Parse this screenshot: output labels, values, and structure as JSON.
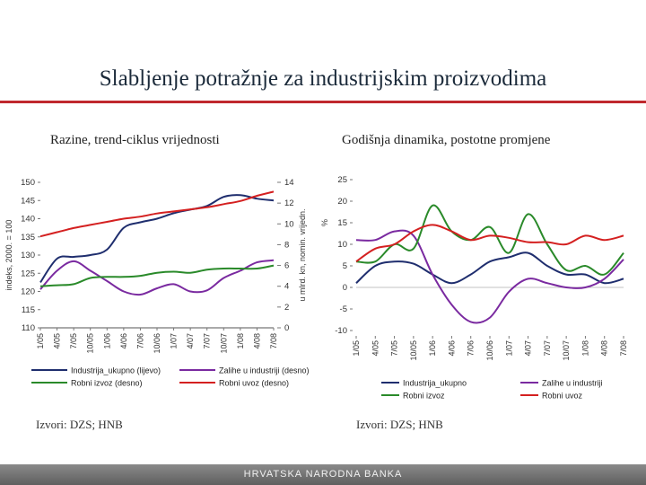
{
  "page": {
    "title": "Slabljenje potražnje za industrijskim proizvodima",
    "footer_text": "HRVATSKA NARODNA BANKA",
    "accent_color": "#c0282e"
  },
  "left_panel": {
    "subtitle": "Razine, trend-ciklus vrijednosti",
    "source": "Izvori: DZS; HNB"
  },
  "right_panel": {
    "subtitle": "Godišnja dinamika, postotne promjene",
    "source": "Izvori: DZS; HNB"
  },
  "chart_data": [
    {
      "type": "line",
      "title": "Razine, trend-ciklus vrijednosti",
      "ylabel": "indeks, 2000. = 100",
      "y2label": "u mlrd. kn, nomin. vrijedn.",
      "ylim": [
        110,
        150
      ],
      "yticks": [
        110,
        115,
        120,
        125,
        130,
        135,
        140,
        145,
        150
      ],
      "y2lim": [
        0,
        14
      ],
      "y2ticks": [
        0,
        2,
        4,
        6,
        8,
        10,
        12,
        14
      ],
      "x": [
        "1/05",
        "4/05",
        "7/05",
        "10/05",
        "1/06",
        "4/06",
        "7/06",
        "10/06",
        "1/07",
        "4/07",
        "7/07",
        "10/07",
        "1/08",
        "4/08",
        "7/08"
      ],
      "series": [
        {
          "name": "Industrija_ukupno (lijevo)",
          "axis": "left",
          "color": "#1f2e6e",
          "values": [
            122.5,
            129.0,
            129.5,
            130.0,
            131.5,
            137.5,
            139.0,
            140.0,
            141.5,
            142.5,
            143.5,
            146.0,
            146.5,
            145.5,
            145.0
          ]
        },
        {
          "name": "Zalihe u industriji (desno)",
          "axis": "right",
          "color": "#7a2aa0",
          "values": [
            3.7,
            5.5,
            6.4,
            5.5,
            4.5,
            3.5,
            3.2,
            3.8,
            4.2,
            3.5,
            3.6,
            4.8,
            5.5,
            6.3,
            6.5
          ]
        },
        {
          "name": "Robni izvoz (desno)",
          "axis": "right",
          "color": "#2a8a2a",
          "values": [
            4.0,
            4.1,
            4.2,
            4.8,
            4.9,
            4.9,
            5.0,
            5.3,
            5.4,
            5.3,
            5.6,
            5.7,
            5.7,
            5.7,
            6.0
          ]
        },
        {
          "name": "Robni uvoz (desno)",
          "axis": "right",
          "color": "#d42020",
          "values": [
            8.8,
            9.2,
            9.6,
            9.9,
            10.2,
            10.5,
            10.7,
            11.0,
            11.2,
            11.4,
            11.6,
            11.9,
            12.2,
            12.7,
            13.1
          ]
        }
      ]
    },
    {
      "type": "line",
      "title": "Godišnja dinamika, postotne promjene",
      "ylabel": "%",
      "ylim": [
        -10,
        25
      ],
      "yticks": [
        -10,
        -5,
        0,
        5,
        10,
        15,
        20,
        25
      ],
      "x": [
        "1/05",
        "4/05",
        "7/05",
        "10/05",
        "1/06",
        "4/06",
        "7/06",
        "10/06",
        "1/07",
        "4/07",
        "7/07",
        "10/07",
        "1/08",
        "4/08",
        "7/08"
      ],
      "series": [
        {
          "name": "Industrija_ukupno",
          "color": "#1f2e6e",
          "values": [
            1.0,
            5.0,
            6.0,
            5.5,
            3.0,
            1.0,
            3.0,
            6.0,
            7.0,
            8.0,
            5.0,
            3.0,
            3.0,
            1.0,
            2.0
          ]
        },
        {
          "name": "Zalihe u industriji",
          "color": "#7a2aa0",
          "values": [
            11.0,
            11.0,
            13.0,
            12.0,
            3.0,
            -4.0,
            -8.0,
            -7.0,
            -1.0,
            2.0,
            1.0,
            0.0,
            0.0,
            2.0,
            6.5
          ]
        },
        {
          "name": "Robni izvoz",
          "color": "#2a8a2a",
          "values": [
            6.0,
            6.0,
            10.0,
            9.0,
            19.0,
            13.0,
            11.0,
            14.0,
            8.0,
            17.0,
            10.0,
            4.0,
            5.0,
            3.0,
            8.0
          ]
        },
        {
          "name": "Robni uvoz",
          "color": "#d42020",
          "values": [
            6.0,
            9.0,
            10.0,
            13.0,
            14.5,
            13.0,
            11.0,
            12.0,
            11.5,
            10.5,
            10.5,
            10.0,
            12.0,
            11.0,
            12.0
          ]
        }
      ]
    }
  ]
}
